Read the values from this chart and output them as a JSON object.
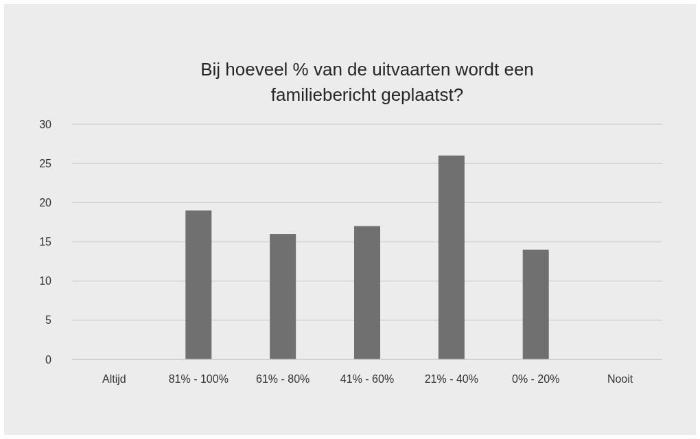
{
  "chart_data": {
    "type": "bar",
    "title": "Bij hoeveel % van de uitvaarten wordt een\nfamiliebericht geplaatst?",
    "categories": [
      "Altijd",
      "81% - 100%",
      "61% - 80%",
      "41% - 60%",
      "21% - 40%",
      "0% - 20%",
      "Nooit"
    ],
    "values": [
      0,
      19,
      16,
      17,
      26,
      14,
      0
    ],
    "color": "#707070",
    "ylim": [
      0,
      30
    ],
    "yticks": [
      0,
      5,
      10,
      15,
      20,
      25,
      30
    ],
    "grid": "y"
  }
}
